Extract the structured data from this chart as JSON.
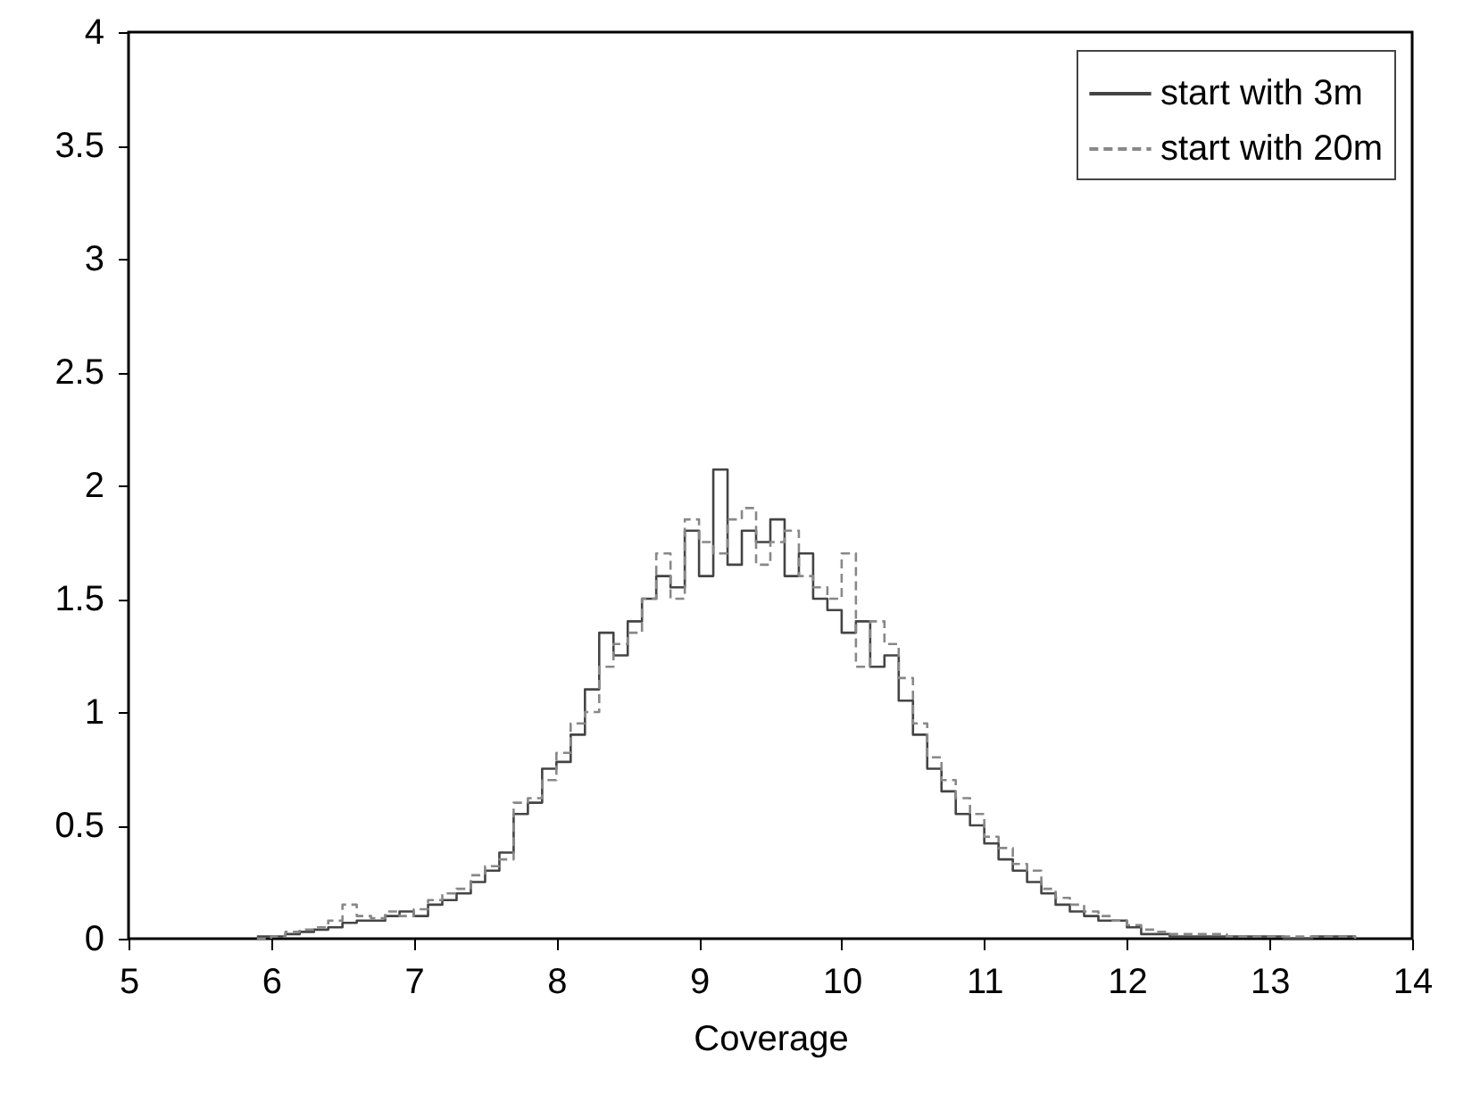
{
  "chart_data": {
    "type": "step",
    "xlabel": "Coverage",
    "xlim": [
      5,
      14
    ],
    "xticks": [
      5,
      6,
      7,
      8,
      9,
      10,
      11,
      12,
      13,
      14
    ],
    "ylim": [
      0,
      4
    ],
    "yticks": [
      0,
      0.5,
      1,
      1.5,
      2,
      2.5,
      3,
      3.5,
      4
    ],
    "grid": false,
    "legend": "top right",
    "series": [
      {
        "name": "start with 3m",
        "color": "#444444",
        "line_style": "solid",
        "x": [
          5.9,
          6.0,
          6.1,
          6.2,
          6.3,
          6.4,
          6.5,
          6.6,
          6.7,
          6.8,
          6.9,
          7.0,
          7.1,
          7.2,
          7.3,
          7.4,
          7.5,
          7.6,
          7.7,
          7.8,
          7.9,
          8.0,
          8.1,
          8.2,
          8.3,
          8.4,
          8.5,
          8.6,
          8.7,
          8.8,
          8.9,
          9.0,
          9.1,
          9.2,
          9.3,
          9.4,
          9.5,
          9.6,
          9.7,
          9.8,
          9.9,
          10.0,
          10.1,
          10.2,
          10.3,
          10.4,
          10.5,
          10.6,
          10.7,
          10.8,
          10.9,
          11.0,
          11.1,
          11.2,
          11.3,
          11.4,
          11.5,
          11.6,
          11.7,
          11.8,
          11.9,
          12.0,
          12.1,
          12.2,
          12.3,
          12.5,
          12.7,
          12.9,
          13.1,
          13.3,
          13.6
        ],
        "values": [
          0.01,
          0.01,
          0.02,
          0.03,
          0.04,
          0.05,
          0.07,
          0.08,
          0.08,
          0.1,
          0.12,
          0.1,
          0.15,
          0.17,
          0.2,
          0.25,
          0.3,
          0.38,
          0.55,
          0.6,
          0.75,
          0.78,
          0.9,
          1.1,
          1.35,
          1.25,
          1.4,
          1.5,
          1.6,
          1.55,
          1.8,
          1.6,
          2.07,
          1.65,
          1.8,
          1.75,
          1.85,
          1.6,
          1.7,
          1.5,
          1.45,
          1.35,
          1.4,
          1.2,
          1.25,
          1.05,
          0.9,
          0.75,
          0.65,
          0.55,
          0.5,
          0.42,
          0.35,
          0.3,
          0.25,
          0.2,
          0.15,
          0.12,
          0.1,
          0.08,
          0.08,
          0.05,
          0.02,
          0.02,
          0.01,
          0.01,
          0.01,
          0.01,
          0.0,
          0.01,
          0.0
        ]
      },
      {
        "name": "start with 20m",
        "color": "#888888",
        "line_style": "dashed",
        "x": [
          5.9,
          6.0,
          6.1,
          6.2,
          6.3,
          6.4,
          6.5,
          6.6,
          6.7,
          6.8,
          6.9,
          7.0,
          7.1,
          7.2,
          7.3,
          7.4,
          7.5,
          7.6,
          7.7,
          7.8,
          7.9,
          8.0,
          8.1,
          8.2,
          8.3,
          8.4,
          8.5,
          8.6,
          8.7,
          8.8,
          8.9,
          9.0,
          9.1,
          9.2,
          9.3,
          9.4,
          9.5,
          9.6,
          9.7,
          9.8,
          9.9,
          10.0,
          10.1,
          10.2,
          10.3,
          10.4,
          10.5,
          10.6,
          10.7,
          10.8,
          10.9,
          11.0,
          11.1,
          11.2,
          11.3,
          11.4,
          11.5,
          11.6,
          11.7,
          11.8,
          11.9,
          12.0,
          12.1,
          12.2,
          12.3,
          12.5,
          12.7,
          12.9,
          13.1,
          13.3,
          13.6
        ],
        "values": [
          0.0,
          0.01,
          0.03,
          0.04,
          0.05,
          0.08,
          0.15,
          0.1,
          0.09,
          0.12,
          0.1,
          0.13,
          0.17,
          0.2,
          0.22,
          0.28,
          0.32,
          0.35,
          0.6,
          0.62,
          0.7,
          0.82,
          0.95,
          1.0,
          1.2,
          1.3,
          1.35,
          1.5,
          1.7,
          1.5,
          1.85,
          1.75,
          1.7,
          1.85,
          1.9,
          1.65,
          1.75,
          1.8,
          1.6,
          1.55,
          1.5,
          1.7,
          1.2,
          1.4,
          1.3,
          1.15,
          0.95,
          0.8,
          0.7,
          0.62,
          0.55,
          0.45,
          0.4,
          0.33,
          0.3,
          0.22,
          0.18,
          0.15,
          0.12,
          0.1,
          0.08,
          0.06,
          0.04,
          0.03,
          0.02,
          0.02,
          0.01,
          0.01,
          0.01,
          0.01,
          0.0
        ]
      }
    ]
  }
}
